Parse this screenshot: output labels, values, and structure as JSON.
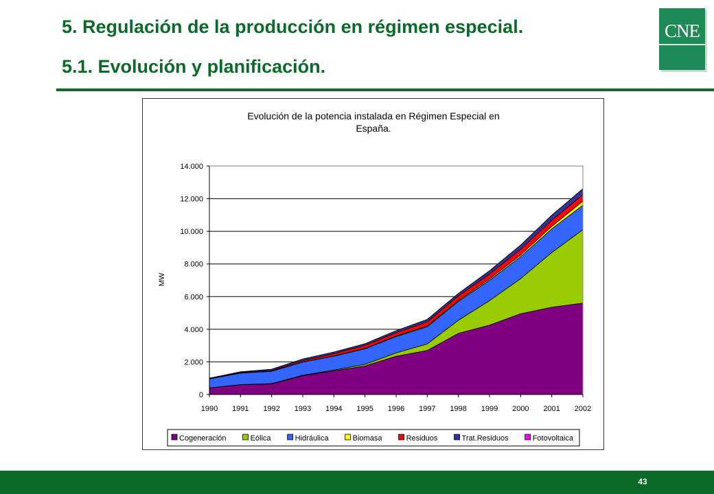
{
  "slide": {
    "title": "5. Regulación de la producción en régimen especial.",
    "subtitle": "5.1. Evolución y planificación.",
    "logo_text": "CNE",
    "page_number": "43"
  },
  "colors": {
    "brand_green": "#0a6a2a",
    "logo_green": "#1e8a57"
  },
  "chart_data": {
    "type": "area",
    "stacked": true,
    "title": "Evolución de la potencia instalada en Régimen Especial en España.",
    "xlabel": "",
    "ylabel": "MW",
    "ylim": [
      0,
      14000
    ],
    "yticks": [
      0,
      2000,
      4000,
      6000,
      8000,
      10000,
      12000,
      14000
    ],
    "ytick_labels": [
      "0",
      "2.000",
      "4.000",
      "6.000",
      "8.000",
      "10.000",
      "12.000",
      "14.000"
    ],
    "x": [
      "1990",
      "1991",
      "1992",
      "1993",
      "1994",
      "1995",
      "1996",
      "1997",
      "1998",
      "1999",
      "2000",
      "2001",
      "2002"
    ],
    "grid": true,
    "legend_position": "bottom",
    "series": [
      {
        "name": "Cogeneración",
        "color": "#800080",
        "values": [
          400,
          600,
          650,
          1150,
          1450,
          1750,
          2350,
          2700,
          3750,
          4250,
          4950,
          5350,
          5600
        ]
      },
      {
        "name": "Eólica",
        "color": "#99cc00",
        "values": [
          5,
          10,
          20,
          30,
          50,
          100,
          200,
          400,
          800,
          1500,
          2150,
          3350,
          4500
        ]
      },
      {
        "name": "Hidráulica",
        "color": "#3366ff",
        "values": [
          550,
          700,
          750,
          800,
          850,
          950,
          1000,
          1050,
          1150,
          1250,
          1350,
          1450,
          1500
        ]
      },
      {
        "name": "Biomasa",
        "color": "#ffff00",
        "values": [
          5,
          10,
          10,
          15,
          20,
          30,
          40,
          50,
          60,
          80,
          100,
          150,
          250
        ]
      },
      {
        "name": "Residuos",
        "color": "#ff0000",
        "values": [
          20,
          30,
          40,
          80,
          130,
          180,
          200,
          250,
          280,
          300,
          350,
          380,
          400
        ]
      },
      {
        "name": "Trat.Residuos",
        "color": "#333399",
        "values": [
          20,
          40,
          80,
          100,
          100,
          100,
          120,
          150,
          150,
          200,
          250,
          300,
          350
        ]
      },
      {
        "name": "Fotovoltaica",
        "color": "#ff00ff",
        "values": [
          1,
          1,
          1,
          1,
          2,
          2,
          2,
          3,
          4,
          5,
          6,
          8,
          10
        ]
      }
    ]
  }
}
